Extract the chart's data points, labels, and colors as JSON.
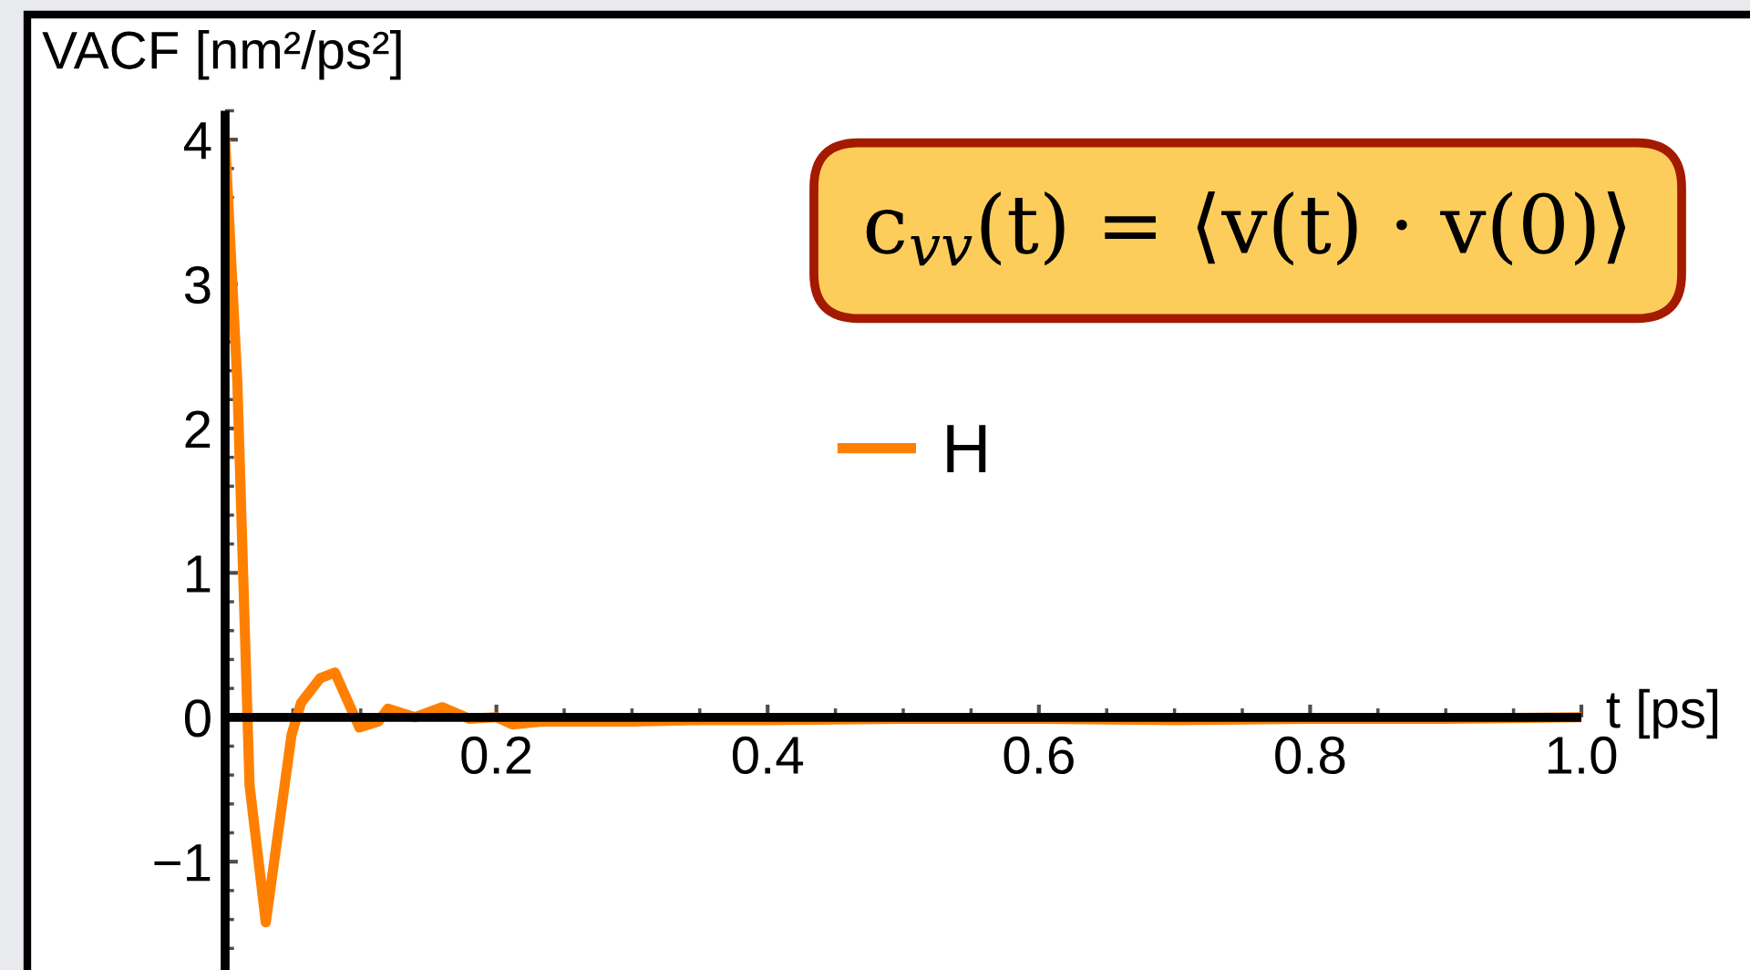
{
  "chart_data": {
    "type": "line",
    "xlabel": "t [ps]",
    "ylabel": "VACF [nm²/ps²]",
    "annotations": [
      "c$_{vv}$(t) = ⟨v(t) · v(0)⟩"
    ],
    "x": [
      0,
      0.009,
      0.018,
      0.03,
      0.049,
      0.056,
      0.07,
      0.081,
      0.099,
      0.113,
      0.12,
      0.14,
      0.16,
      0.18,
      0.2,
      0.212,
      0.233,
      0.26,
      0.3,
      0.35,
      0.4,
      0.5,
      0.6,
      0.7,
      0.8,
      0.9,
      1.0
    ],
    "series": [
      {
        "name": "H",
        "color": "#ff8000",
        "values": [
          4.0,
          2.32,
          -0.47,
          -1.42,
          -0.12,
          0.1,
          0.27,
          0.31,
          -0.07,
          -0.03,
          0.06,
          0.0,
          0.07,
          -0.01,
          0.0,
          -0.05,
          -0.03,
          -0.03,
          -0.03,
          -0.02,
          -0.02,
          -0.01,
          -0.01,
          -0.02,
          -0.01,
          -0.01,
          0.0
        ]
      }
    ],
    "xlim": [
      0,
      1.0
    ],
    "ylim": [
      -1.75,
      4.2
    ],
    "xticks": [
      {
        "value": 0.05,
        "label": null
      },
      {
        "value": 0.1,
        "label": null
      },
      {
        "value": 0.15,
        "label": null
      },
      0.2,
      {
        "value": 0.25,
        "label": null
      },
      {
        "value": 0.3,
        "label": null
      },
      {
        "value": 0.35,
        "label": null
      },
      0.4,
      {
        "value": 0.45,
        "label": null
      },
      {
        "value": 0.5,
        "label": null
      },
      {
        "value": 0.55,
        "label": null
      },
      0.6,
      {
        "value": 0.65,
        "label": null
      },
      {
        "value": 0.7,
        "label": null
      },
      {
        "value": 0.75,
        "label": null
      },
      0.8,
      {
        "value": 0.85,
        "label": null
      },
      {
        "value": 0.9,
        "label": null
      },
      {
        "value": 0.95,
        "label": null
      },
      {
        "value": 1,
        "label": "1.0"
      }
    ],
    "yticks": [
      {
        "value": -1.6,
        "label": null
      },
      {
        "value": -1.4,
        "label": null
      },
      {
        "value": -1.2,
        "label": null
      },
      {
        "value": -1,
        "label": "−1"
      },
      {
        "value": -0.8,
        "label": null
      },
      {
        "value": -0.6,
        "label": null
      },
      {
        "value": -0.4,
        "label": null
      },
      {
        "value": -0.2,
        "label": null
      },
      0,
      {
        "value": 0.2,
        "label": null
      },
      {
        "value": 0.4,
        "label": null
      },
      {
        "value": 0.6,
        "label": null
      },
      {
        "value": 0.8,
        "label": null
      },
      1,
      {
        "value": 1.2,
        "label": null
      },
      {
        "value": 1.4,
        "label": null
      },
      {
        "value": 1.6,
        "label": null
      },
      {
        "value": 1.8,
        "label": null
      },
      2,
      {
        "value": 2.2,
        "label": null
      },
      {
        "value": 2.4,
        "label": null
      },
      {
        "value": 2.6,
        "label": null
      },
      {
        "value": 2.8,
        "label": null
      },
      3,
      {
        "value": 3.2,
        "label": null
      },
      {
        "value": 3.4,
        "label": null
      },
      {
        "value": 3.6,
        "label": null
      },
      {
        "value": 3.8,
        "label": null
      },
      4,
      {
        "value": 4.2,
        "label": null
      }
    ],
    "legend": "center"
  }
}
